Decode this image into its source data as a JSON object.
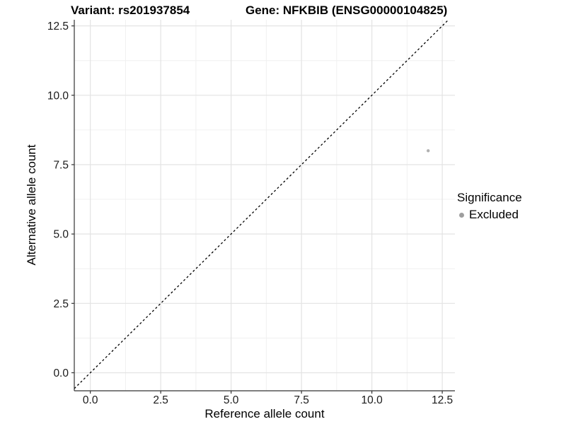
{
  "chart_data": {
    "type": "scatter",
    "title_left": "Variant: rs201937854",
    "title_right": "Gene: NFKBIB (ENSG00000104825)",
    "xlabel": "Reference allele count",
    "ylabel": "Alternative allele count",
    "xlim": [
      -0.57,
      12.95
    ],
    "ylim": [
      -0.65,
      12.72
    ],
    "x_ticks": [
      0,
      2.5,
      5,
      7.5,
      10,
      12.5
    ],
    "x_tick_labels": [
      "0.0",
      "2.5",
      "5.0",
      "7.5",
      "10.0",
      "12.5"
    ],
    "y_ticks": [
      0,
      2.5,
      5,
      7.5,
      10,
      12.5
    ],
    "y_tick_labels": [
      "0.0",
      "2.5",
      "5.0",
      "7.5",
      "10.0",
      "12.5"
    ],
    "minor_ticks": [
      1.25,
      3.75,
      6.25,
      8.75,
      11.25
    ],
    "grid": "major+minor",
    "identity_line": {
      "equation": "y = x",
      "style": "dashed",
      "color": "#000000"
    },
    "series": [
      {
        "name": "Excluded",
        "color": "#b0b0b0",
        "points": [
          {
            "x": 12,
            "y": 8
          }
        ]
      }
    ],
    "legend": {
      "title": "Significance",
      "position": "right",
      "items": [
        {
          "label": "Excluded",
          "color": "#9e9e9e"
        }
      ]
    }
  },
  "colors": {
    "background": "#ffffff",
    "grid_major": "#e3e3e3",
    "grid_minor": "#f0f0f0",
    "axis_line": "#333333",
    "tick_text": "#1a1a1a",
    "title_text": "#000000"
  }
}
